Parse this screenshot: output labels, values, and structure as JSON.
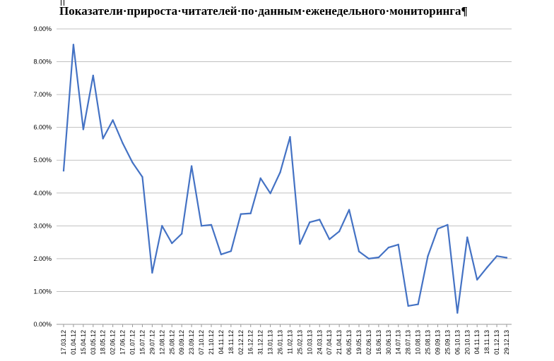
{
  "chart_data": {
    "type": "line",
    "title": "Показатели·прироста·читателей·по·данным·еженедельного·мониторинга¶",
    "xlabel": "",
    "ylabel": "",
    "ylim": [
      0,
      9
    ],
    "yticks": [
      "0.00%",
      "1.00%",
      "2.00%",
      "3.00%",
      "4.00%",
      "5.00%",
      "6.00%",
      "7.00%",
      "8.00%",
      "9.00%"
    ],
    "grid": true,
    "legend": "none",
    "categories": [
      "17.03.12",
      "01.04.12",
      "15.04.12",
      "03.05.12",
      "18.05.12",
      "02.06.12",
      "17.06.12",
      "01.07.12",
      "15.07.12",
      "29.07.12",
      "12.08.12",
      "25.08.12",
      "09.09.12",
      "23.09.12",
      "07.10.12",
      "21.10.12",
      "04.11.12",
      "18.11.12",
      "02.12.12",
      "16.12.12",
      "31.12.12",
      "13.01.13",
      "26.01.13",
      "11.02.13",
      "25.02.13",
      "10.03.13",
      "24.03.13",
      "07.04.13",
      "21.04.13",
      "06.05.13",
      "19.05.13",
      "02.06.13",
      "16.06.13",
      "30.06.13",
      "14.07.13",
      "28.07.13",
      "10.08.13",
      "25.08.13",
      "09.09.13",
      "25.09.13",
      "06.10.13",
      "20.10.13",
      "04.11.13",
      "18.11.13",
      "01.12.13",
      "29.12.13"
    ],
    "series": [
      {
        "color": "#4472c4",
        "values": [
          4.68,
          8.52,
          5.94,
          7.58,
          5.66,
          6.22,
          5.52,
          4.93,
          4.49,
          1.57,
          3.0,
          2.47,
          2.76,
          4.82,
          3.0,
          3.03,
          2.13,
          2.23,
          3.36,
          3.38,
          4.45,
          3.99,
          4.63,
          5.71,
          2.45,
          3.11,
          3.19,
          2.59,
          2.83,
          3.49,
          2.22,
          2.0,
          2.04,
          2.34,
          2.43,
          0.56,
          0.61,
          2.08,
          2.91,
          3.03,
          0.35,
          2.65,
          1.36,
          1.73,
          2.08,
          2.03
        ]
      }
    ]
  }
}
